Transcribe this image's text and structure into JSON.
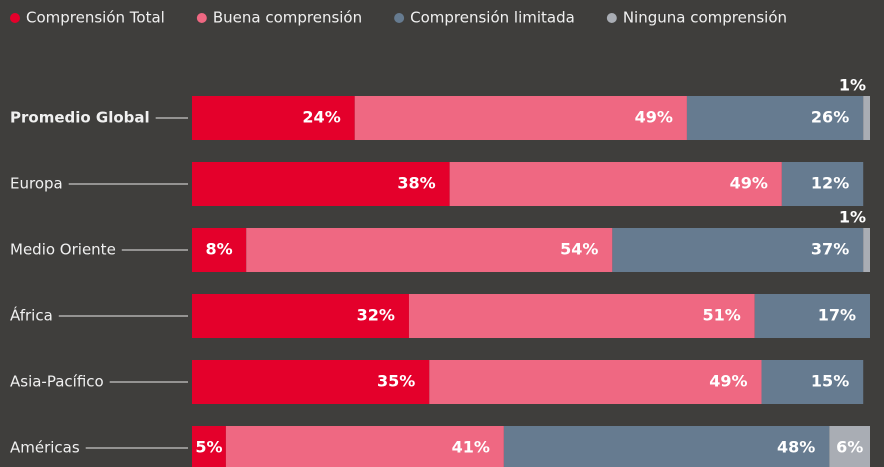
{
  "chart_data": {
    "type": "stacked-bar-horizontal",
    "categories": [
      "Promedio Global",
      "Europa",
      "Medio Oriente",
      "África",
      "Asia-Pacífico",
      "Américas"
    ],
    "series": [
      {
        "name": "Comprensión Total",
        "color": "#e4002b",
        "values": [
          24,
          38,
          8,
          32,
          35,
          5
        ],
        "value_labels": [
          "24%",
          "38%",
          "8%",
          "32%",
          "35%",
          "5%"
        ]
      },
      {
        "name": "Buena comprensión",
        "color": "#ef6882",
        "values": [
          49,
          49,
          54,
          51,
          49,
          41
        ],
        "value_labels": [
          "49%",
          "49%",
          "54%",
          "51%",
          "49%",
          "41%"
        ]
      },
      {
        "name": "Comprensión limitada",
        "color": "#667b90",
        "values": [
          26,
          12,
          37,
          17,
          15,
          48
        ],
        "value_labels": [
          "26%",
          "12%",
          "37%",
          "17%",
          "15%",
          "48%"
        ]
      },
      {
        "name": "Ninguna comprensión",
        "color": "#a9adb4",
        "values": [
          1,
          null,
          1,
          null,
          null,
          6
        ],
        "value_labels": [
          "1%",
          null,
          "1%",
          null,
          null,
          "6%"
        ]
      }
    ],
    "xlim": [
      0,
      100
    ]
  }
}
